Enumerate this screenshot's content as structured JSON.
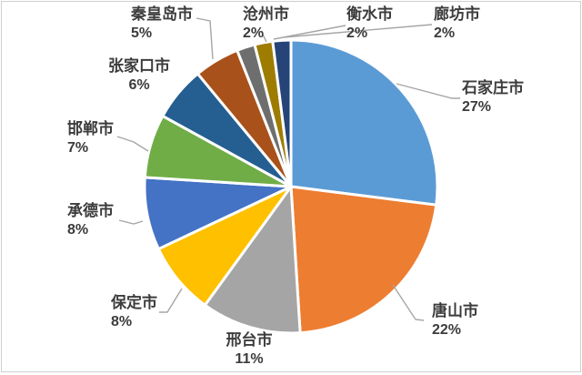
{
  "figure": {
    "background": "#ffffff",
    "border_color": "#d0d0d0",
    "label_text_color": "#3c3c3c",
    "leader_line_color": "#a6a6a6",
    "slice_separator_color": "#ffffff"
  },
  "chart_data": {
    "type": "pie",
    "title": "",
    "value_suffix": "%",
    "start_angle": "12-oclock",
    "direction": "clockwise",
    "legend": "none",
    "categories": [
      "石家庄市",
      "唐山市",
      "邢台市",
      "保定市",
      "承德市",
      "邯郸市",
      "张家口市",
      "秦皇岛市",
      "沧州市",
      "衡水市",
      "廊坊市"
    ],
    "values": [
      27,
      22,
      11,
      8,
      8,
      7,
      6,
      5,
      2,
      2,
      2
    ],
    "slices": [
      {
        "id": "shijiazhuang",
        "label": "石家庄市",
        "value": 27,
        "display": "27%",
        "color": "#5B9BD5"
      },
      {
        "id": "tangshan",
        "label": "唐山市",
        "value": 22,
        "display": "22%",
        "color": "#ED7D31"
      },
      {
        "id": "xingtai",
        "label": "邢台市",
        "value": 11,
        "display": "11%",
        "color": "#A5A5A5"
      },
      {
        "id": "baoding",
        "label": "保定市",
        "value": 8,
        "display": "8%",
        "color": "#FFC000"
      },
      {
        "id": "chengde",
        "label": "承德市",
        "value": 8,
        "display": "8%",
        "color": "#4472C4"
      },
      {
        "id": "handan",
        "label": "邯郸市",
        "value": 7,
        "display": "7%",
        "color": "#70AD47"
      },
      {
        "id": "zhangjiakou",
        "label": "张家口市",
        "value": 6,
        "display": "6%",
        "color": "#255E91"
      },
      {
        "id": "qinhuangdao",
        "label": "秦皇岛市",
        "value": 5,
        "display": "5%",
        "color": "#A9511A"
      },
      {
        "id": "cangzhou",
        "label": "沧州市",
        "value": 2,
        "display": "2%",
        "color": "#6E6E6E"
      },
      {
        "id": "hengshui",
        "label": "衡水市",
        "value": 2,
        "display": "2%",
        "color": "#9E7C00"
      },
      {
        "id": "langfang",
        "label": "廊坊市",
        "value": 2,
        "display": "2%",
        "color": "#264478"
      }
    ]
  }
}
